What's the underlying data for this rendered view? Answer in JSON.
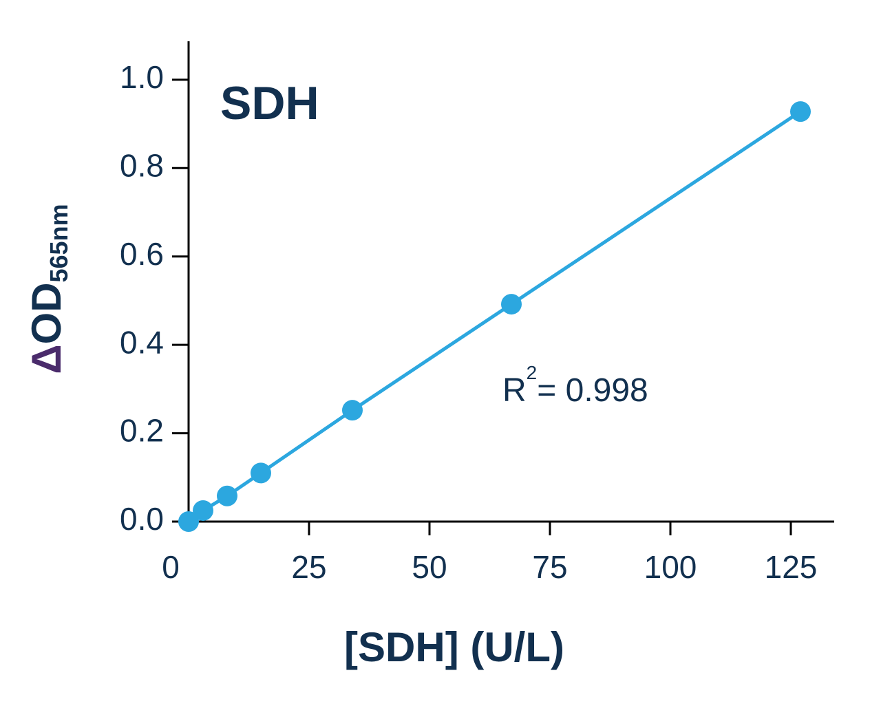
{
  "chart_data": {
    "type": "line",
    "title": "SDH",
    "x_label": "[SDH] (U/L)",
    "y_label": [
      "Δ",
      "OD",
      "565nm"
    ],
    "annotation": [
      "R",
      "2",
      "= 0.998"
    ],
    "x": [
      0,
      3,
      8,
      15,
      34,
      67,
      127
    ],
    "series": [
      {
        "color": "#2ca7df",
        "values": [
          0,
          0.025,
          0.058,
          0.11,
          0.252,
          0.492,
          0.928
        ]
      }
    ],
    "xlim": [
      0,
      134
    ],
    "ylim": [
      0,
      1.087
    ],
    "xticks": [
      0,
      25,
      50,
      75,
      100,
      125
    ],
    "yticks": [
      {
        "value": 0,
        "label": "0.0"
      },
      0.2,
      0.4,
      0.6,
      0.8,
      {
        "value": 1,
        "label": "1.0"
      }
    ],
    "grid": false
  }
}
